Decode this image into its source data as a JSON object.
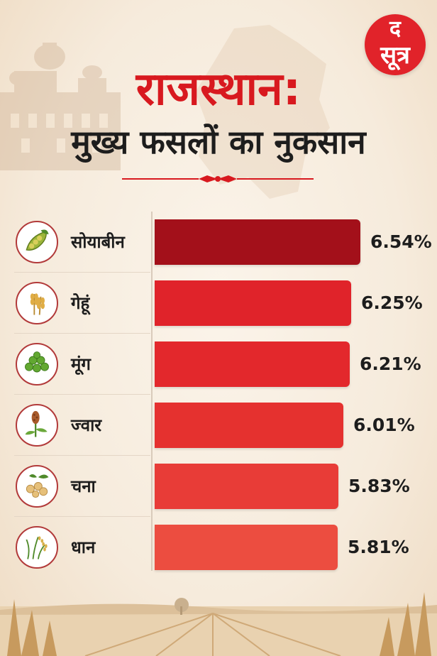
{
  "logo": {
    "top": "द",
    "bottom": "सूत्र"
  },
  "title": {
    "line1": "राजस्थान:",
    "line2": "मुख्य फसलों का नुकसान"
  },
  "chart_data": {
    "type": "bar",
    "orientation": "horizontal",
    "categories": [
      "सोयाबीन",
      "गेहूं",
      "मूंग",
      "ज्वार",
      "चना",
      "धान"
    ],
    "values": [
      6.54,
      6.25,
      6.21,
      6.01,
      5.83,
      5.81
    ],
    "value_labels": [
      "6.54%",
      "6.25%",
      "6.21%",
      "6.01%",
      "5.83%",
      "5.81%"
    ],
    "icons": [
      "soybean-icon",
      "wheat-icon",
      "moong-icon",
      "jowar-icon",
      "chickpea-icon",
      "paddy-icon"
    ],
    "colors": [
      "#a3101a",
      "#e0232a",
      "#e3282c",
      "#e5312f",
      "#e83c37",
      "#ec4d40"
    ],
    "xlim": [
      0,
      7.1
    ],
    "grid": false,
    "legend": "none"
  }
}
